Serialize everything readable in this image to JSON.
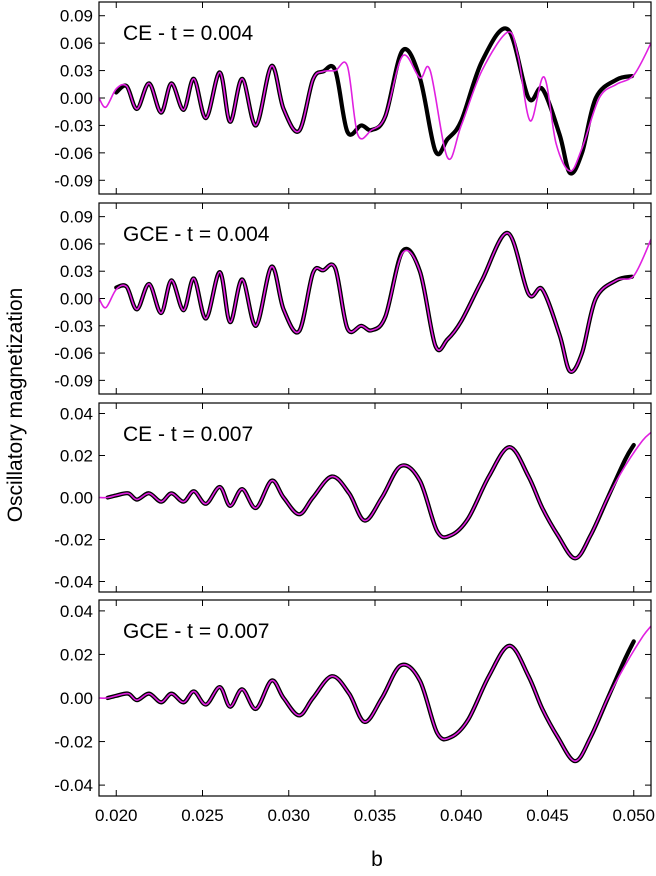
{
  "figure": {
    "ylabel": "Oscillatory magnetization",
    "xlabel": "b",
    "xlim": [
      0.019,
      0.051
    ],
    "xticks": [
      0.02,
      0.025,
      0.03,
      0.035,
      0.04,
      0.045,
      0.05
    ],
    "xtick_labels": [
      "0.020",
      "0.025",
      "0.030",
      "0.035",
      "0.040",
      "0.045",
      "0.050"
    ],
    "colors": {
      "data": "#000000",
      "fit": "#e020e0"
    }
  },
  "chart_data": [
    {
      "type": "line",
      "title": "CE - t = 0.004",
      "ylim": [
        -0.105,
        0.105
      ],
      "yticks": [
        0.09,
        0.06,
        0.03,
        0.0,
        -0.03,
        -0.06,
        -0.09
      ],
      "ytick_labels": [
        "0.09",
        "0.06",
        "0.03",
        "0.00",
        "-0.03",
        "-0.06",
        "-0.09"
      ],
      "series": [
        {
          "role": "data",
          "x": [
            0.02,
            0.0206,
            0.0212,
            0.0219,
            0.0226,
            0.0232,
            0.0239,
            0.0245,
            0.0252,
            0.026,
            0.0266,
            0.0273,
            0.0281,
            0.029,
            0.0297,
            0.0306,
            0.0314,
            0.032,
            0.0327,
            0.0334,
            0.0342,
            0.0348,
            0.0356,
            0.0366,
            0.0376,
            0.0385,
            0.0392,
            0.04,
            0.0412,
            0.0427,
            0.0439,
            0.0447,
            0.0457,
            0.0463,
            0.047,
            0.0478,
            0.049,
            0.0499
          ],
          "y": [
            0.006,
            0.013,
            -0.012,
            0.016,
            -0.016,
            0.016,
            -0.013,
            0.021,
            -0.022,
            0.028,
            -0.026,
            0.021,
            -0.03,
            0.035,
            -0.012,
            -0.036,
            0.02,
            0.029,
            0.03,
            -0.037,
            -0.03,
            -0.035,
            -0.02,
            0.052,
            0.022,
            -0.058,
            -0.045,
            -0.025,
            0.04,
            0.075,
            0.0,
            0.01,
            -0.04,
            -0.082,
            -0.06,
            0.0,
            0.02,
            0.024
          ]
        },
        {
          "role": "fit",
          "x": [
            0.019,
            0.0194,
            0.02,
            0.0206,
            0.0212,
            0.0219,
            0.0226,
            0.0232,
            0.0239,
            0.0245,
            0.0252,
            0.026,
            0.0266,
            0.0273,
            0.0281,
            0.029,
            0.0297,
            0.0306,
            0.0314,
            0.032,
            0.0327,
            0.0334,
            0.034,
            0.0348,
            0.0356,
            0.0366,
            0.0376,
            0.0382,
            0.0392,
            0.04,
            0.0412,
            0.0427,
            0.0433,
            0.044,
            0.0448,
            0.0455,
            0.0463,
            0.047,
            0.048,
            0.049,
            0.05,
            0.051
          ],
          "y": [
            0.0,
            -0.01,
            0.01,
            0.013,
            -0.012,
            0.016,
            -0.016,
            0.016,
            -0.013,
            0.021,
            -0.022,
            0.028,
            -0.026,
            0.021,
            -0.03,
            0.035,
            -0.012,
            -0.036,
            0.02,
            0.029,
            0.03,
            0.035,
            -0.04,
            -0.035,
            -0.02,
            0.046,
            0.022,
            0.03,
            -0.065,
            -0.03,
            0.03,
            0.072,
            0.045,
            -0.025,
            0.023,
            -0.05,
            -0.08,
            -0.055,
            0.0,
            0.015,
            0.025,
            0.06
          ]
        }
      ]
    },
    {
      "type": "line",
      "title": "GCE - t = 0.004",
      "ylim": [
        -0.105,
        0.105
      ],
      "yticks": [
        0.09,
        0.06,
        0.03,
        0.0,
        -0.03,
        -0.06,
        -0.09
      ],
      "ytick_labels": [
        "0.09",
        "0.06",
        "0.03",
        "0.00",
        "-0.03",
        "-0.06",
        "-0.09"
      ],
      "series": [
        {
          "role": "data",
          "x": [
            0.02,
            0.0206,
            0.0212,
            0.0219,
            0.0226,
            0.0232,
            0.0239,
            0.0245,
            0.0252,
            0.026,
            0.0266,
            0.0273,
            0.0281,
            0.029,
            0.0297,
            0.0306,
            0.0314,
            0.032,
            0.0327,
            0.0334,
            0.0342,
            0.0348,
            0.0356,
            0.0366,
            0.0376,
            0.0385,
            0.0392,
            0.04,
            0.0412,
            0.0427,
            0.0439,
            0.0447,
            0.0457,
            0.0463,
            0.047,
            0.0478,
            0.049,
            0.0499
          ],
          "y": [
            0.012,
            0.013,
            -0.012,
            0.016,
            -0.016,
            0.02,
            -0.013,
            0.022,
            -0.022,
            0.029,
            -0.026,
            0.021,
            -0.03,
            0.035,
            -0.012,
            -0.036,
            0.028,
            0.031,
            0.033,
            -0.033,
            -0.03,
            -0.035,
            -0.02,
            0.052,
            0.03,
            -0.052,
            -0.045,
            -0.025,
            0.02,
            0.072,
            0.005,
            0.01,
            -0.04,
            -0.08,
            -0.06,
            0.0,
            0.02,
            0.024
          ]
        },
        {
          "role": "fit",
          "x": [
            0.019,
            0.0194,
            0.02,
            0.0206,
            0.0212,
            0.0219,
            0.0226,
            0.0232,
            0.0239,
            0.0245,
            0.0252,
            0.026,
            0.0266,
            0.0273,
            0.0281,
            0.029,
            0.0297,
            0.0306,
            0.0314,
            0.032,
            0.0327,
            0.0334,
            0.0342,
            0.0348,
            0.0356,
            0.0366,
            0.0376,
            0.0385,
            0.0392,
            0.04,
            0.0412,
            0.0427,
            0.0439,
            0.0447,
            0.0457,
            0.0463,
            0.047,
            0.0478,
            0.049,
            0.05,
            0.051
          ],
          "y": [
            0.0,
            -0.01,
            0.01,
            0.013,
            -0.012,
            0.016,
            -0.016,
            0.02,
            -0.013,
            0.022,
            -0.022,
            0.029,
            -0.026,
            0.021,
            -0.03,
            0.035,
            -0.012,
            -0.036,
            0.028,
            0.031,
            0.033,
            -0.033,
            -0.03,
            -0.035,
            -0.02,
            0.05,
            0.03,
            -0.052,
            -0.045,
            -0.025,
            0.02,
            0.072,
            0.005,
            0.01,
            -0.04,
            -0.08,
            -0.06,
            0.0,
            0.02,
            0.025,
            0.065
          ]
        }
      ]
    },
    {
      "type": "line",
      "title": "CE - t = 0.007",
      "ylim": [
        -0.045,
        0.045
      ],
      "yticks": [
        0.04,
        0.02,
        0.0,
        -0.02,
        -0.04
      ],
      "ytick_labels": [
        "0.04",
        "0.02",
        "0.00",
        "-0.02",
        "-0.04"
      ],
      "series": [
        {
          "role": "data",
          "x": [
            0.0195,
            0.02,
            0.0207,
            0.0212,
            0.0219,
            0.0226,
            0.0232,
            0.0239,
            0.0245,
            0.0252,
            0.026,
            0.0266,
            0.0273,
            0.0281,
            0.029,
            0.0297,
            0.0306,
            0.0314,
            0.0325,
            0.0335,
            0.0344,
            0.0354,
            0.0365,
            0.0376,
            0.0386,
            0.0394,
            0.0404,
            0.0416,
            0.0428,
            0.0439,
            0.0447,
            0.0456,
            0.0466,
            0.0475,
            0.0485,
            0.0495,
            0.05
          ],
          "y": [
            0.0,
            0.001,
            0.002,
            -0.001,
            0.002,
            -0.002,
            0.002,
            -0.002,
            0.003,
            -0.003,
            0.005,
            -0.004,
            0.004,
            -0.005,
            0.008,
            0.0,
            -0.008,
            0.0,
            0.01,
            0.002,
            -0.011,
            0.0,
            0.015,
            0.008,
            -0.016,
            -0.018,
            -0.01,
            0.01,
            0.024,
            0.01,
            -0.005,
            -0.018,
            -0.029,
            -0.018,
            0.0,
            0.018,
            0.025
          ]
        },
        {
          "role": "fit",
          "x": [
            0.019,
            0.0195,
            0.02,
            0.0207,
            0.0212,
            0.0219,
            0.0226,
            0.0232,
            0.0239,
            0.0245,
            0.0252,
            0.026,
            0.0266,
            0.0273,
            0.0281,
            0.029,
            0.0297,
            0.0306,
            0.0314,
            0.0325,
            0.0335,
            0.0344,
            0.0354,
            0.0365,
            0.0376,
            0.0386,
            0.0394,
            0.0404,
            0.0416,
            0.0428,
            0.0439,
            0.0447,
            0.0456,
            0.0466,
            0.0475,
            0.0485,
            0.0495,
            0.0505,
            0.051
          ],
          "y": [
            0.0,
            0.0,
            0.001,
            0.002,
            -0.001,
            0.002,
            -0.002,
            0.002,
            -0.002,
            0.003,
            -0.003,
            0.005,
            -0.004,
            0.004,
            -0.005,
            0.008,
            0.0,
            -0.008,
            0.0,
            0.01,
            0.002,
            -0.011,
            0.0,
            0.015,
            0.008,
            -0.016,
            -0.018,
            -0.01,
            0.01,
            0.024,
            0.01,
            -0.005,
            -0.018,
            -0.029,
            -0.018,
            0.0,
            0.015,
            0.027,
            0.031
          ]
        }
      ]
    },
    {
      "type": "line",
      "title": "GCE - t = 0.007",
      "ylim": [
        -0.045,
        0.045
      ],
      "yticks": [
        0.04,
        0.02,
        0.0,
        -0.02,
        -0.04
      ],
      "ytick_labels": [
        "0.04",
        "0.02",
        "0.00",
        "-0.02",
        "-0.04"
      ],
      "series": [
        {
          "role": "data",
          "x": [
            0.0195,
            0.02,
            0.0207,
            0.0212,
            0.0219,
            0.0226,
            0.0232,
            0.0239,
            0.0245,
            0.0252,
            0.026,
            0.0266,
            0.0273,
            0.0281,
            0.029,
            0.0297,
            0.0306,
            0.0314,
            0.0325,
            0.0335,
            0.0344,
            0.0354,
            0.0365,
            0.0376,
            0.0386,
            0.0394,
            0.0404,
            0.0416,
            0.0428,
            0.0439,
            0.0447,
            0.0456,
            0.0466,
            0.0475,
            0.0485,
            0.0495,
            0.05
          ],
          "y": [
            0.0,
            0.001,
            0.002,
            -0.001,
            0.002,
            -0.002,
            0.002,
            -0.002,
            0.003,
            -0.003,
            0.005,
            -0.004,
            0.004,
            -0.005,
            0.008,
            0.0,
            -0.008,
            0.0,
            0.01,
            0.002,
            -0.011,
            0.0,
            0.015,
            0.008,
            -0.016,
            -0.018,
            -0.01,
            0.01,
            0.024,
            0.01,
            -0.005,
            -0.018,
            -0.029,
            -0.018,
            0.0,
            0.018,
            0.026
          ]
        },
        {
          "role": "fit",
          "x": [
            0.019,
            0.0195,
            0.02,
            0.0207,
            0.0212,
            0.0219,
            0.0226,
            0.0232,
            0.0239,
            0.0245,
            0.0252,
            0.026,
            0.0266,
            0.0273,
            0.0281,
            0.029,
            0.0297,
            0.0306,
            0.0314,
            0.0325,
            0.0335,
            0.0344,
            0.0354,
            0.0365,
            0.0376,
            0.0386,
            0.0394,
            0.0404,
            0.0416,
            0.0428,
            0.0439,
            0.0447,
            0.0456,
            0.0466,
            0.0475,
            0.0485,
            0.0495,
            0.0505,
            0.051
          ],
          "y": [
            0.0,
            0.0,
            0.001,
            0.002,
            -0.001,
            0.002,
            -0.002,
            0.002,
            -0.002,
            0.003,
            -0.003,
            0.005,
            -0.004,
            0.004,
            -0.005,
            0.008,
            0.0,
            -0.008,
            0.0,
            0.01,
            0.002,
            -0.011,
            0.0,
            0.015,
            0.008,
            -0.016,
            -0.018,
            -0.01,
            0.01,
            0.024,
            0.01,
            -0.005,
            -0.018,
            -0.029,
            -0.018,
            0.0,
            0.015,
            0.028,
            0.033
          ]
        }
      ]
    }
  ]
}
